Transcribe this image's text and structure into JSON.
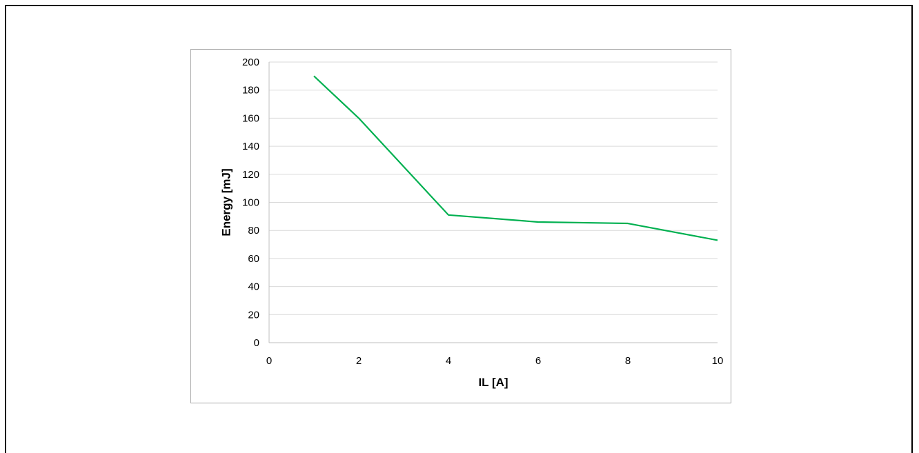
{
  "chart_data": {
    "type": "line",
    "title": "",
    "xlabel": "IL [A]",
    "ylabel": "Energy [mJ]",
    "xlim": [
      0,
      10
    ],
    "ylim": [
      0,
      200
    ],
    "x_ticks": [
      "0",
      "2",
      "4",
      "6",
      "8",
      "10"
    ],
    "y_ticks": [
      "0",
      "20",
      "40",
      "60",
      "80",
      "100",
      "120",
      "140",
      "160",
      "180",
      "200"
    ],
    "grid": "horizontal",
    "series": [
      {
        "color": "#00b050",
        "x": [
          1,
          2,
          4,
          6,
          8,
          10
        ],
        "y": [
          190,
          160,
          91,
          86,
          85,
          73
        ]
      }
    ]
  }
}
